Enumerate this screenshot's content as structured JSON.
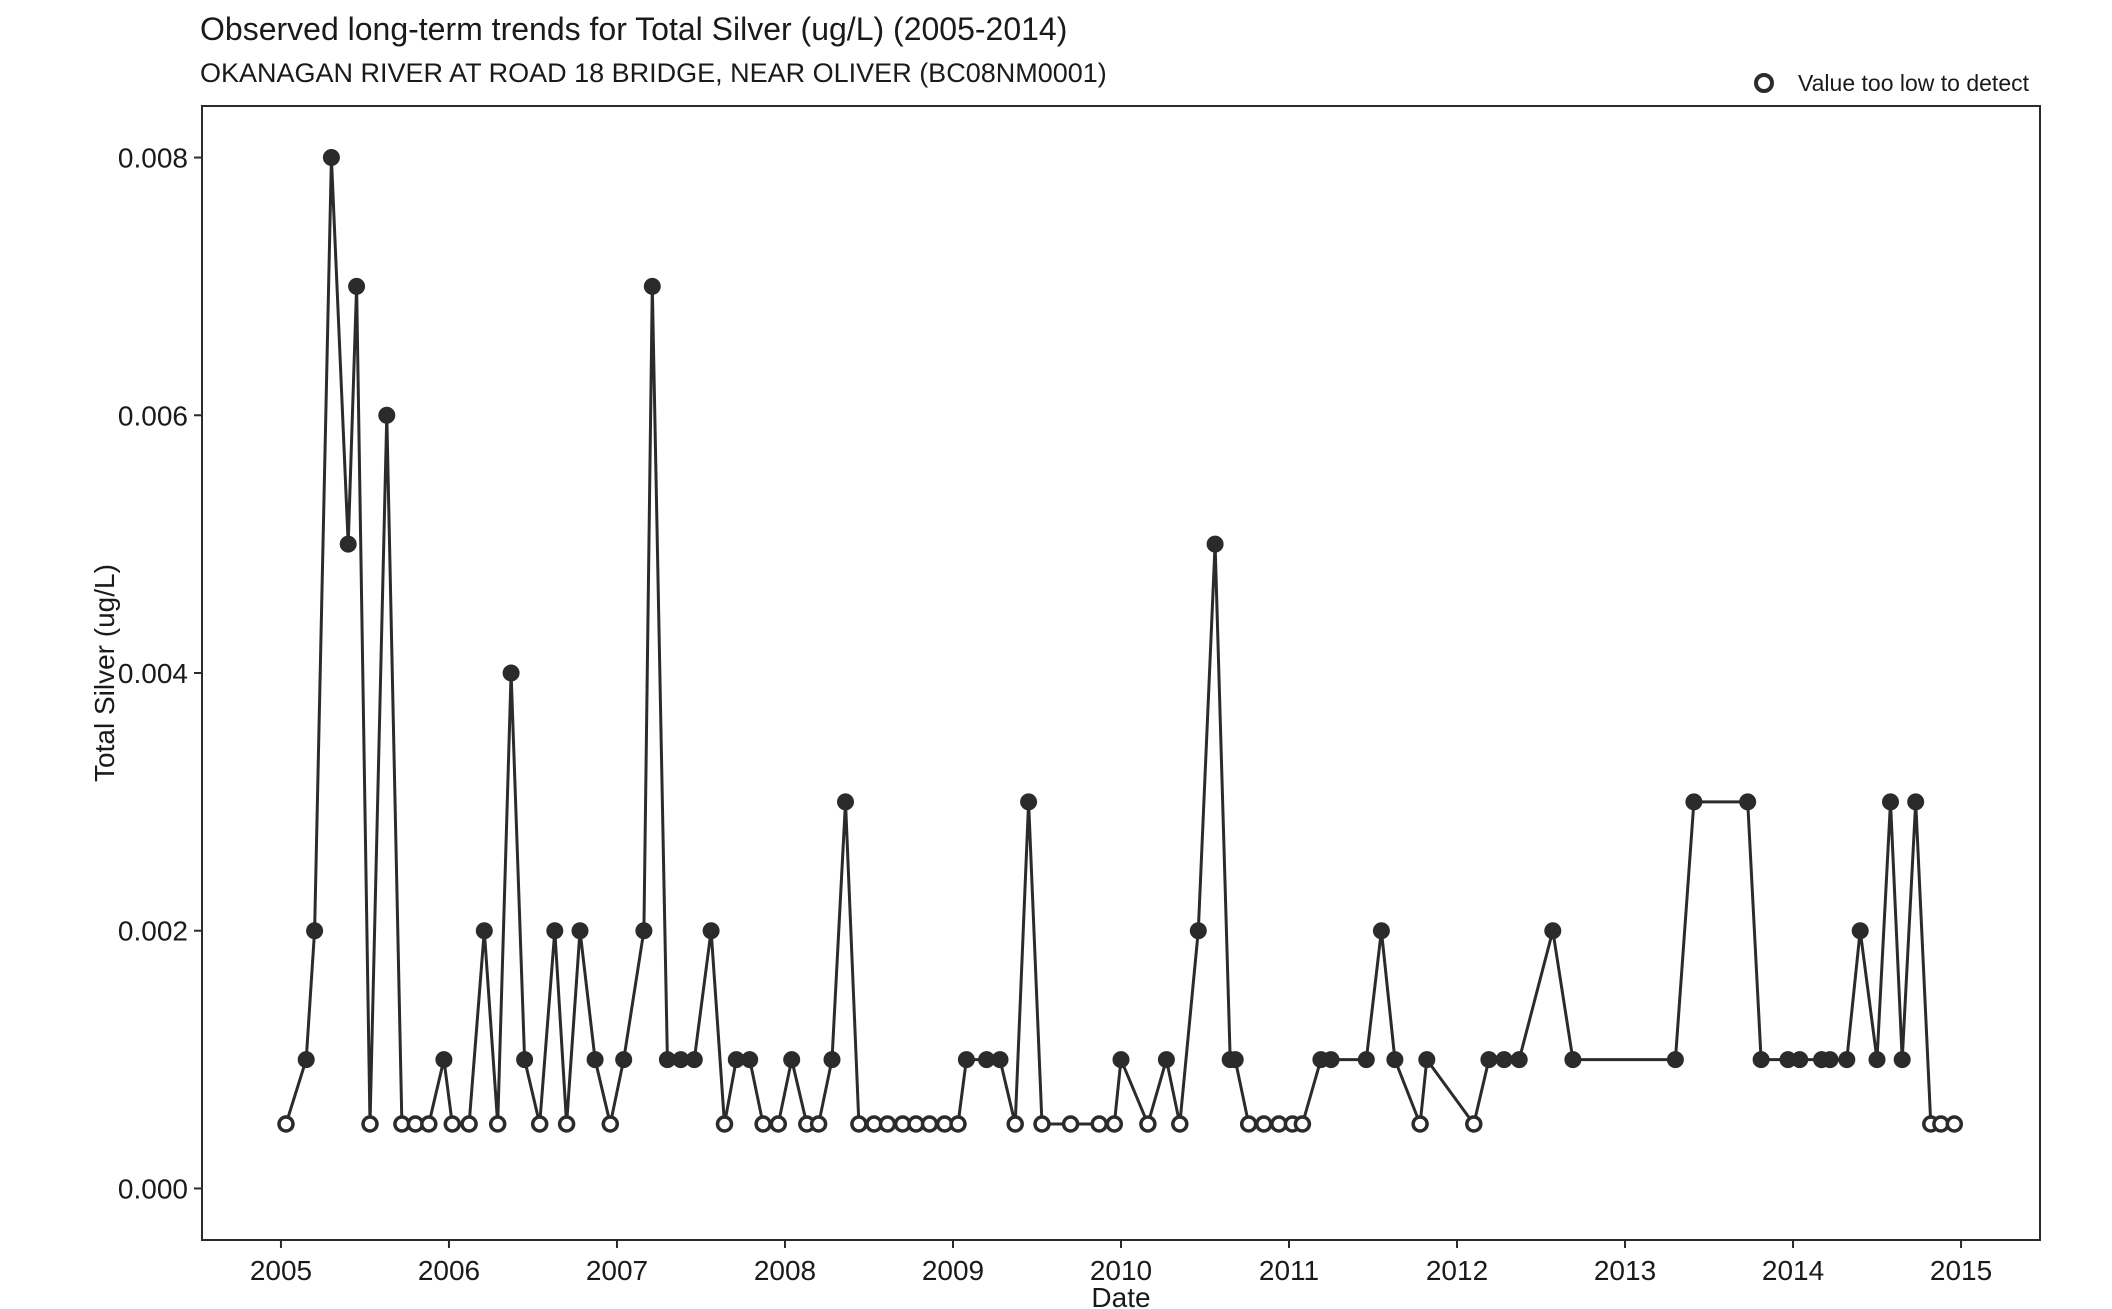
{
  "chart_data": {
    "type": "line",
    "title": "Observed long-term trends for Total Silver (ug/L) (2005-2014)",
    "subtitle": "OKANAGAN RIVER AT ROAD 18 BRIDGE, NEAR OLIVER (BC08NM0001)",
    "xlabel": "Date",
    "ylabel": "Total Silver (ug/L)",
    "xlim": [
      2004.53,
      2015.47
    ],
    "ylim": [
      -0.0004,
      0.0084
    ],
    "x_ticks": [
      2005,
      2006,
      2007,
      2008,
      2009,
      2010,
      2011,
      2012,
      2013,
      2014,
      2015
    ],
    "x_tick_labels": [
      "2005",
      "2006",
      "2007",
      "2008",
      "2009",
      "2010",
      "2011",
      "2012",
      "2013",
      "2014",
      "2015"
    ],
    "y_ticks": [
      0,
      0.002,
      0.004,
      0.006,
      0.008
    ],
    "y_tick_labels": [
      "0.000",
      "0.002",
      "0.004",
      "0.006",
      "0.008"
    ],
    "grid": false,
    "legend": {
      "position": "top-right",
      "label": "Value too low to detect",
      "marker": "open-circle"
    },
    "colors": {
      "line": "#2b2b2b",
      "marker": "#2b2b2b",
      "background": "#ffffff"
    },
    "series": [
      {
        "x": [
          2005.03,
          2005.15,
          2005.2,
          2005.3,
          2005.4,
          2005.45,
          2005.53,
          2005.63,
          2005.72,
          2005.8,
          2005.88,
          2005.97,
          2006.02,
          2006.12,
          2006.21,
          2006.29,
          2006.37,
          2006.45,
          2006.54,
          2006.63,
          2006.7,
          2006.78,
          2006.87,
          2006.96,
          2007.04,
          2007.16,
          2007.21,
          2007.3,
          2007.38,
          2007.46,
          2007.56,
          2007.64,
          2007.71,
          2007.79,
          2007.87,
          2007.96,
          2008.04,
          2008.13,
          2008.2,
          2008.28,
          2008.36,
          2008.44,
          2008.53,
          2008.61,
          2008.7,
          2008.78,
          2008.86,
          2008.95,
          2009.03,
          2009.08,
          2009.2,
          2009.28,
          2009.37,
          2009.45,
          2009.53,
          2009.7,
          2009.87,
          2009.96,
          2010.0,
          2010.16,
          2010.27,
          2010.35,
          2010.46,
          2010.56,
          2010.65,
          2010.68,
          2010.76,
          2010.85,
          2010.94,
          2011.02,
          2011.08,
          2011.19,
          2011.25,
          2011.46,
          2011.55,
          2011.63,
          2011.78,
          2011.82,
          2012.1,
          2012.19,
          2012.28,
          2012.37,
          2012.57,
          2012.69,
          2013.3,
          2013.41,
          2013.73,
          2013.81,
          2013.97,
          2014.04,
          2014.17,
          2014.22,
          2014.32,
          2014.4,
          2014.5,
          2014.58,
          2014.65,
          2014.73,
          2014.82,
          2014.88,
          2014.96
        ],
        "y": [
          0.0005,
          0.001,
          0.002,
          0.008,
          0.005,
          0.007,
          0.0005,
          0.006,
          0.0005,
          0.0005,
          0.0005,
          0.001,
          0.0005,
          0.0005,
          0.002,
          0.0005,
          0.004,
          0.001,
          0.0005,
          0.002,
          0.0005,
          0.002,
          0.001,
          0.0005,
          0.001,
          0.002,
          0.007,
          0.001,
          0.001,
          0.001,
          0.002,
          0.0005,
          0.001,
          0.001,
          0.0005,
          0.0005,
          0.001,
          0.0005,
          0.0005,
          0.001,
          0.003,
          0.0005,
          0.0005,
          0.0005,
          0.0005,
          0.0005,
          0.0005,
          0.0005,
          0.0005,
          0.001,
          0.001,
          0.001,
          0.0005,
          0.003,
          0.0005,
          0.0005,
          0.0005,
          0.0005,
          0.001,
          0.0005,
          0.001,
          0.0005,
          0.002,
          0.005,
          0.001,
          0.001,
          0.0005,
          0.0005,
          0.0005,
          0.0005,
          0.0005,
          0.001,
          0.001,
          0.001,
          0.002,
          0.001,
          0.0005,
          0.001,
          0.0005,
          0.001,
          0.001,
          0.001,
          0.002,
          0.001,
          0.001,
          0.003,
          0.003,
          0.001,
          0.001,
          0.001,
          0.001,
          0.001,
          0.001,
          0.002,
          0.001,
          0.003,
          0.001,
          0.003,
          0.0005,
          0.0005,
          0.0005
        ],
        "below_detection": [
          true,
          false,
          false,
          false,
          false,
          false,
          true,
          false,
          true,
          true,
          true,
          false,
          true,
          true,
          false,
          true,
          false,
          false,
          true,
          false,
          true,
          false,
          false,
          true,
          false,
          false,
          false,
          false,
          false,
          false,
          false,
          true,
          false,
          false,
          true,
          true,
          false,
          true,
          true,
          false,
          false,
          true,
          true,
          true,
          true,
          true,
          true,
          true,
          true,
          false,
          false,
          false,
          true,
          false,
          true,
          true,
          true,
          true,
          false,
          true,
          false,
          true,
          false,
          false,
          false,
          false,
          true,
          true,
          true,
          true,
          true,
          false,
          false,
          false,
          false,
          false,
          true,
          false,
          true,
          false,
          false,
          false,
          false,
          false,
          false,
          false,
          false,
          false,
          false,
          false,
          false,
          false,
          false,
          false,
          false,
          false,
          false,
          false,
          true,
          true,
          true
        ]
      }
    ]
  }
}
